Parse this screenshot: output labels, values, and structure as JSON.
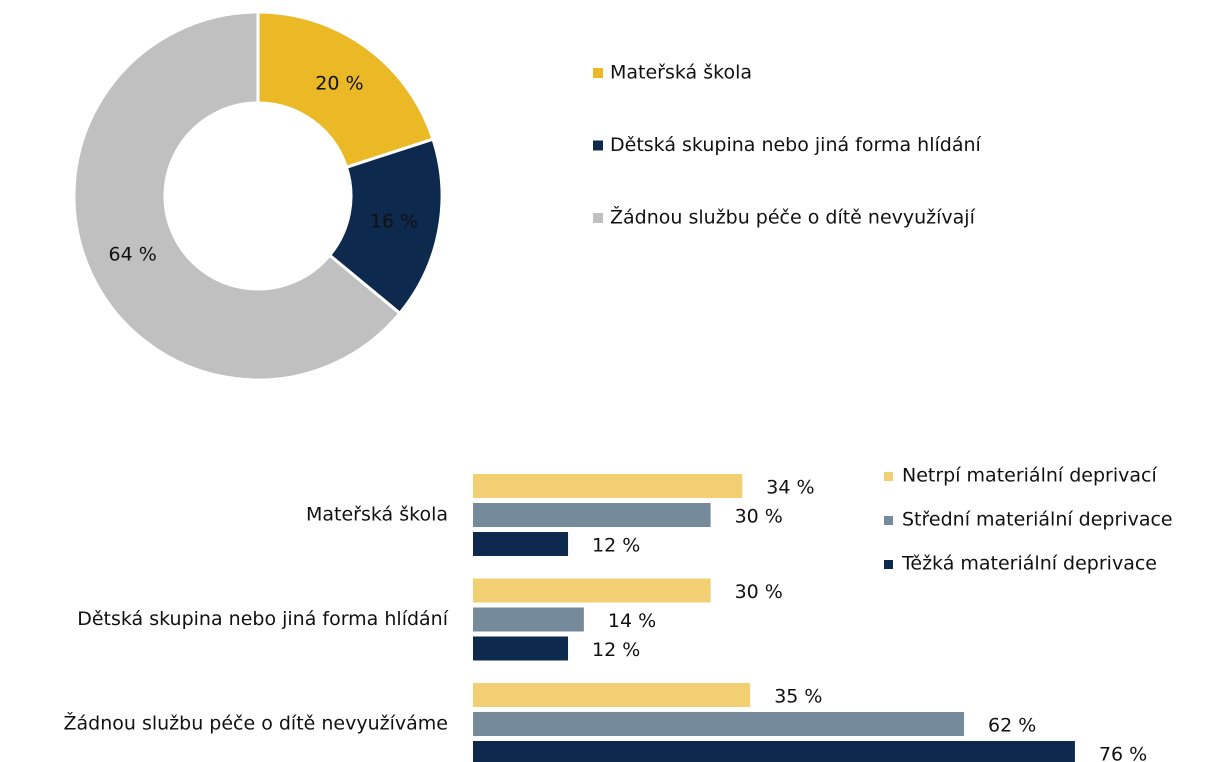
{
  "chart_data": [
    {
      "type": "pie",
      "donut": true,
      "categories": [
        "Mateřská škola",
        "Dětská skupina nebo jiná forma hlídání",
        "Žádnou službu péče o dítě nevyužívají"
      ],
      "values": [
        20,
        16,
        64
      ],
      "value_labels": [
        "20 %",
        "16 %",
        "64 %"
      ],
      "colors": [
        "#ebb826",
        "#0d2a4e",
        "#c0c0c0"
      ],
      "legend": "right"
    },
    {
      "type": "bar",
      "orientation": "horizontal",
      "categories": [
        "Mateřská škola",
        "Dětská skupina nebo jiná forma hlídání",
        "Žádnou službu péče o dítě nevyužíváme"
      ],
      "series": [
        {
          "name": "Netrpí materiální deprivací",
          "color": "#f2cf73",
          "values": [
            34,
            30,
            35
          ],
          "value_labels": [
            "34 %",
            "30 %",
            "35 %"
          ]
        },
        {
          "name": "Střední materiální deprivace",
          "color": "#758b9b",
          "values": [
            30,
            14,
            62
          ],
          "value_labels": [
            "30 %",
            "14 %",
            "62 %"
          ]
        },
        {
          "name": "Těžká materiální deprivace",
          "color": "#0d2a4e",
          "values": [
            12,
            12,
            76
          ],
          "value_labels": [
            "12 %",
            "12 %",
            "76 %"
          ]
        }
      ],
      "legend": "upper right"
    }
  ]
}
